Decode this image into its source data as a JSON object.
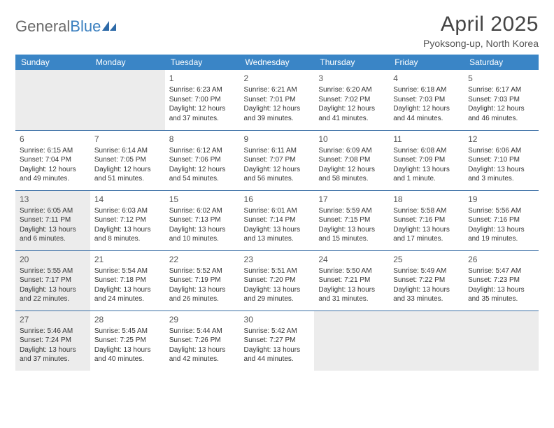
{
  "brand": {
    "part1": "General",
    "part2": "Blue"
  },
  "title": "April 2025",
  "location": "Pyoksong-up, North Korea",
  "colors": {
    "header_bg": "#3a85c6",
    "header_text": "#ffffff",
    "border": "#3a6ea5",
    "shaded": "#ececec",
    "page_bg": "#ffffff",
    "text": "#333333",
    "logo_gray": "#6a6a6a",
    "logo_blue": "#3a7fbf"
  },
  "weekdays": [
    "Sunday",
    "Monday",
    "Tuesday",
    "Wednesday",
    "Thursday",
    "Friday",
    "Saturday"
  ],
  "cells": [
    {
      "r": 0,
      "c": 0,
      "shaded": true
    },
    {
      "r": 0,
      "c": 1,
      "shaded": true
    },
    {
      "r": 0,
      "c": 2,
      "day": "1",
      "sunrise": "Sunrise: 6:23 AM",
      "sunset": "Sunset: 7:00 PM",
      "day1": "Daylight: 12 hours",
      "day2": "and 37 minutes."
    },
    {
      "r": 0,
      "c": 3,
      "day": "2",
      "sunrise": "Sunrise: 6:21 AM",
      "sunset": "Sunset: 7:01 PM",
      "day1": "Daylight: 12 hours",
      "day2": "and 39 minutes."
    },
    {
      "r": 0,
      "c": 4,
      "day": "3",
      "sunrise": "Sunrise: 6:20 AM",
      "sunset": "Sunset: 7:02 PM",
      "day1": "Daylight: 12 hours",
      "day2": "and 41 minutes."
    },
    {
      "r": 0,
      "c": 5,
      "day": "4",
      "sunrise": "Sunrise: 6:18 AM",
      "sunset": "Sunset: 7:03 PM",
      "day1": "Daylight: 12 hours",
      "day2": "and 44 minutes."
    },
    {
      "r": 0,
      "c": 6,
      "day": "5",
      "sunrise": "Sunrise: 6:17 AM",
      "sunset": "Sunset: 7:03 PM",
      "day1": "Daylight: 12 hours",
      "day2": "and 46 minutes."
    },
    {
      "r": 1,
      "c": 0,
      "day": "6",
      "sunrise": "Sunrise: 6:15 AM",
      "sunset": "Sunset: 7:04 PM",
      "day1": "Daylight: 12 hours",
      "day2": "and 49 minutes."
    },
    {
      "r": 1,
      "c": 1,
      "day": "7",
      "sunrise": "Sunrise: 6:14 AM",
      "sunset": "Sunset: 7:05 PM",
      "day1": "Daylight: 12 hours",
      "day2": "and 51 minutes."
    },
    {
      "r": 1,
      "c": 2,
      "day": "8",
      "sunrise": "Sunrise: 6:12 AM",
      "sunset": "Sunset: 7:06 PM",
      "day1": "Daylight: 12 hours",
      "day2": "and 54 minutes."
    },
    {
      "r": 1,
      "c": 3,
      "day": "9",
      "sunrise": "Sunrise: 6:11 AM",
      "sunset": "Sunset: 7:07 PM",
      "day1": "Daylight: 12 hours",
      "day2": "and 56 minutes."
    },
    {
      "r": 1,
      "c": 4,
      "day": "10",
      "sunrise": "Sunrise: 6:09 AM",
      "sunset": "Sunset: 7:08 PM",
      "day1": "Daylight: 12 hours",
      "day2": "and 58 minutes."
    },
    {
      "r": 1,
      "c": 5,
      "day": "11",
      "sunrise": "Sunrise: 6:08 AM",
      "sunset": "Sunset: 7:09 PM",
      "day1": "Daylight: 13 hours",
      "day2": "and 1 minute."
    },
    {
      "r": 1,
      "c": 6,
      "day": "12",
      "sunrise": "Sunrise: 6:06 AM",
      "sunset": "Sunset: 7:10 PM",
      "day1": "Daylight: 13 hours",
      "day2": "and 3 minutes."
    },
    {
      "r": 2,
      "c": 0,
      "day": "13",
      "shaded": true,
      "sunrise": "Sunrise: 6:05 AM",
      "sunset": "Sunset: 7:11 PM",
      "day1": "Daylight: 13 hours",
      "day2": "and 6 minutes."
    },
    {
      "r": 2,
      "c": 1,
      "day": "14",
      "sunrise": "Sunrise: 6:03 AM",
      "sunset": "Sunset: 7:12 PM",
      "day1": "Daylight: 13 hours",
      "day2": "and 8 minutes."
    },
    {
      "r": 2,
      "c": 2,
      "day": "15",
      "sunrise": "Sunrise: 6:02 AM",
      "sunset": "Sunset: 7:13 PM",
      "day1": "Daylight: 13 hours",
      "day2": "and 10 minutes."
    },
    {
      "r": 2,
      "c": 3,
      "day": "16",
      "sunrise": "Sunrise: 6:01 AM",
      "sunset": "Sunset: 7:14 PM",
      "day1": "Daylight: 13 hours",
      "day2": "and 13 minutes."
    },
    {
      "r": 2,
      "c": 4,
      "day": "17",
      "sunrise": "Sunrise: 5:59 AM",
      "sunset": "Sunset: 7:15 PM",
      "day1": "Daylight: 13 hours",
      "day2": "and 15 minutes."
    },
    {
      "r": 2,
      "c": 5,
      "day": "18",
      "sunrise": "Sunrise: 5:58 AM",
      "sunset": "Sunset: 7:16 PM",
      "day1": "Daylight: 13 hours",
      "day2": "and 17 minutes."
    },
    {
      "r": 2,
      "c": 6,
      "day": "19",
      "sunrise": "Sunrise: 5:56 AM",
      "sunset": "Sunset: 7:16 PM",
      "day1": "Daylight: 13 hours",
      "day2": "and 19 minutes."
    },
    {
      "r": 3,
      "c": 0,
      "day": "20",
      "shaded": true,
      "sunrise": "Sunrise: 5:55 AM",
      "sunset": "Sunset: 7:17 PM",
      "day1": "Daylight: 13 hours",
      "day2": "and 22 minutes."
    },
    {
      "r": 3,
      "c": 1,
      "day": "21",
      "sunrise": "Sunrise: 5:54 AM",
      "sunset": "Sunset: 7:18 PM",
      "day1": "Daylight: 13 hours",
      "day2": "and 24 minutes."
    },
    {
      "r": 3,
      "c": 2,
      "day": "22",
      "sunrise": "Sunrise: 5:52 AM",
      "sunset": "Sunset: 7:19 PM",
      "day1": "Daylight: 13 hours",
      "day2": "and 26 minutes."
    },
    {
      "r": 3,
      "c": 3,
      "day": "23",
      "sunrise": "Sunrise: 5:51 AM",
      "sunset": "Sunset: 7:20 PM",
      "day1": "Daylight: 13 hours",
      "day2": "and 29 minutes."
    },
    {
      "r": 3,
      "c": 4,
      "day": "24",
      "sunrise": "Sunrise: 5:50 AM",
      "sunset": "Sunset: 7:21 PM",
      "day1": "Daylight: 13 hours",
      "day2": "and 31 minutes."
    },
    {
      "r": 3,
      "c": 5,
      "day": "25",
      "sunrise": "Sunrise: 5:49 AM",
      "sunset": "Sunset: 7:22 PM",
      "day1": "Daylight: 13 hours",
      "day2": "and 33 minutes."
    },
    {
      "r": 3,
      "c": 6,
      "day": "26",
      "sunrise": "Sunrise: 5:47 AM",
      "sunset": "Sunset: 7:23 PM",
      "day1": "Daylight: 13 hours",
      "day2": "and 35 minutes."
    },
    {
      "r": 4,
      "c": 0,
      "day": "27",
      "shaded": true,
      "sunrise": "Sunrise: 5:46 AM",
      "sunset": "Sunset: 7:24 PM",
      "day1": "Daylight: 13 hours",
      "day2": "and 37 minutes."
    },
    {
      "r": 4,
      "c": 1,
      "day": "28",
      "sunrise": "Sunrise: 5:45 AM",
      "sunset": "Sunset: 7:25 PM",
      "day1": "Daylight: 13 hours",
      "day2": "and 40 minutes."
    },
    {
      "r": 4,
      "c": 2,
      "day": "29",
      "sunrise": "Sunrise: 5:44 AM",
      "sunset": "Sunset: 7:26 PM",
      "day1": "Daylight: 13 hours",
      "day2": "and 42 minutes."
    },
    {
      "r": 4,
      "c": 3,
      "day": "30",
      "sunrise": "Sunrise: 5:42 AM",
      "sunset": "Sunset: 7:27 PM",
      "day1": "Daylight: 13 hours",
      "day2": "and 44 minutes."
    },
    {
      "r": 4,
      "c": 4,
      "shaded": true
    },
    {
      "r": 4,
      "c": 5,
      "shaded": true
    },
    {
      "r": 4,
      "c": 6,
      "shaded": true
    }
  ]
}
